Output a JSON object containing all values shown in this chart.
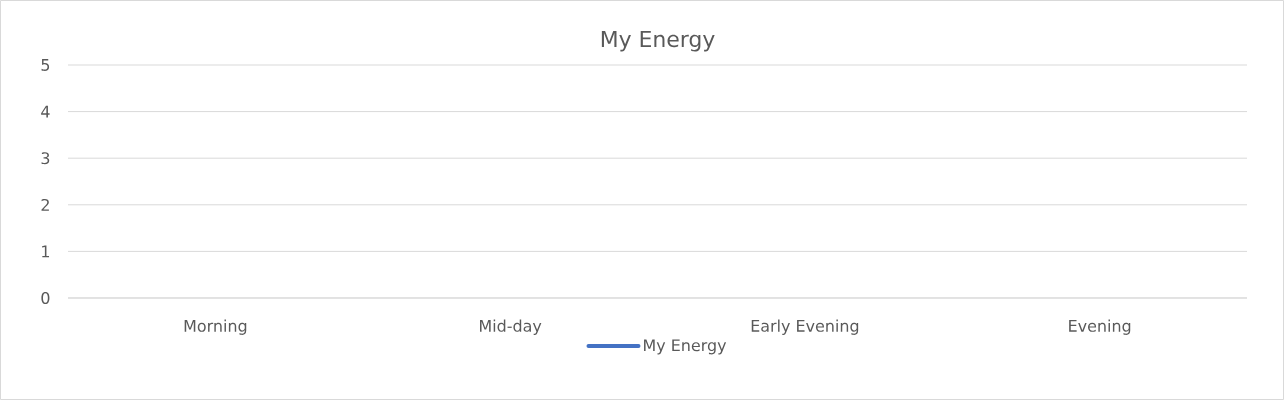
{
  "chart_data": {
    "type": "line",
    "title": "My Energy",
    "categories": [
      "Morning",
      "Mid-day",
      "Early Evening",
      "Evening"
    ],
    "series": [
      {
        "name": "My Energy",
        "color": "#4472c4",
        "values": [
          null,
          null,
          null,
          null
        ]
      }
    ],
    "ylim": [
      0,
      5
    ],
    "yticks": [
      0,
      1,
      2,
      3,
      4,
      5
    ],
    "grid": "y",
    "legend": "bottom"
  }
}
